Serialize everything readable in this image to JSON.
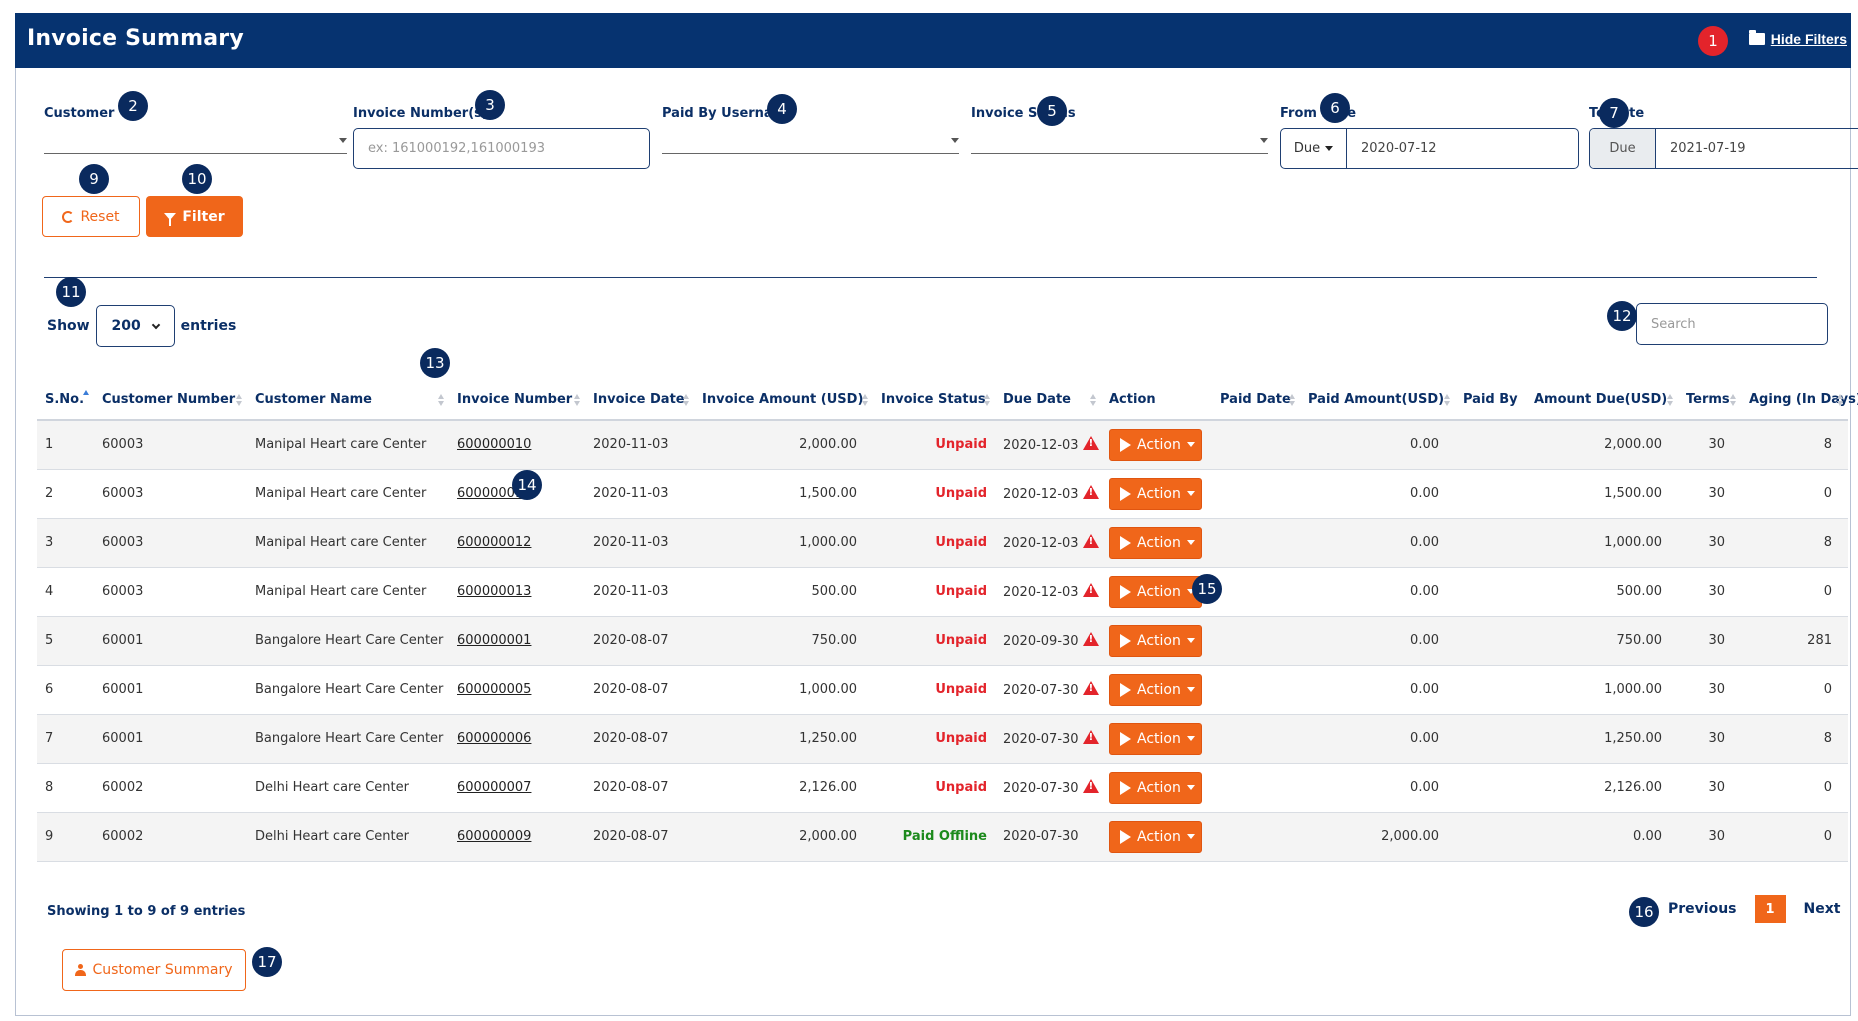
{
  "header": {
    "title": "Invoice Summary",
    "hide_filters_label": "Hide Filters"
  },
  "filters": {
    "customer_label": "Customer",
    "invoice_numbers_label": "Invoice Number(s)",
    "invoice_numbers_placeholder": "ex: 161000192,161000193",
    "paid_by_label": "Paid By Username",
    "status_label": "Invoice Status",
    "from_date_label": "From Date",
    "from_date_type": "Due",
    "from_date_value": "2020-07-12",
    "to_date_label": "To Date",
    "to_date_type": "Due",
    "to_date_value": "2021-07-19",
    "reset_label": "Reset",
    "filter_label": "Filter"
  },
  "table_controls": {
    "show_label": "Show",
    "entries_count": "200",
    "entries_label": "entries",
    "search_placeholder": "Search"
  },
  "table": {
    "headers": [
      "S.No.",
      "Customer Number",
      "Customer Name",
      "Invoice Number",
      "Invoice Date",
      "Invoice Amount (USD)",
      "Invoice Status",
      "Due Date",
      "Action",
      "Paid Date",
      "Paid Amount(USD)",
      "Paid By",
      "Amount Due(USD)",
      "Terms",
      "Aging (In Days)"
    ],
    "action_label": "Action",
    "rows": [
      {
        "sno": "1",
        "cust_no": "60003",
        "cust_name": "Manipal Heart care Center",
        "inv_no": "600000010",
        "inv_date": "2020-11-03",
        "amount": "2,000.00",
        "status": "Unpaid",
        "due": "2020-12-03",
        "overdue": true,
        "paid_date": "",
        "paid_amount": "0.00",
        "paid_by": "",
        "amount_due": "2,000.00",
        "terms": "30",
        "aging": "8"
      },
      {
        "sno": "2",
        "cust_no": "60003",
        "cust_name": "Manipal Heart care Center",
        "inv_no": "600000011",
        "inv_date": "2020-11-03",
        "amount": "1,500.00",
        "status": "Unpaid",
        "due": "2020-12-03",
        "overdue": true,
        "paid_date": "",
        "paid_amount": "0.00",
        "paid_by": "",
        "amount_due": "1,500.00",
        "terms": "30",
        "aging": "0"
      },
      {
        "sno": "3",
        "cust_no": "60003",
        "cust_name": "Manipal Heart care Center",
        "inv_no": "600000012",
        "inv_date": "2020-11-03",
        "amount": "1,000.00",
        "status": "Unpaid",
        "due": "2020-12-03",
        "overdue": true,
        "paid_date": "",
        "paid_amount": "0.00",
        "paid_by": "",
        "amount_due": "1,000.00",
        "terms": "30",
        "aging": "8"
      },
      {
        "sno": "4",
        "cust_no": "60003",
        "cust_name": "Manipal Heart care Center",
        "inv_no": "600000013",
        "inv_date": "2020-11-03",
        "amount": "500.00",
        "status": "Unpaid",
        "due": "2020-12-03",
        "overdue": true,
        "paid_date": "",
        "paid_amount": "0.00",
        "paid_by": "",
        "amount_due": "500.00",
        "terms": "30",
        "aging": "0"
      },
      {
        "sno": "5",
        "cust_no": "60001",
        "cust_name": "Bangalore Heart Care Center",
        "inv_no": "600000001",
        "inv_date": "2020-08-07",
        "amount": "750.00",
        "status": "Unpaid",
        "due": "2020-09-30",
        "overdue": true,
        "paid_date": "",
        "paid_amount": "0.00",
        "paid_by": "",
        "amount_due": "750.00",
        "terms": "30",
        "aging": "281"
      },
      {
        "sno": "6",
        "cust_no": "60001",
        "cust_name": "Bangalore Heart Care Center",
        "inv_no": "600000005",
        "inv_date": "2020-08-07",
        "amount": "1,000.00",
        "status": "Unpaid",
        "due": "2020-07-30",
        "overdue": true,
        "paid_date": "",
        "paid_amount": "0.00",
        "paid_by": "",
        "amount_due": "1,000.00",
        "terms": "30",
        "aging": "0"
      },
      {
        "sno": "7",
        "cust_no": "60001",
        "cust_name": "Bangalore Heart Care Center",
        "inv_no": "600000006",
        "inv_date": "2020-08-07",
        "amount": "1,250.00",
        "status": "Unpaid",
        "due": "2020-07-30",
        "overdue": true,
        "paid_date": "",
        "paid_amount": "0.00",
        "paid_by": "",
        "amount_due": "1,250.00",
        "terms": "30",
        "aging": "8"
      },
      {
        "sno": "8",
        "cust_no": "60002",
        "cust_name": "Delhi Heart care Center",
        "inv_no": "600000007",
        "inv_date": "2020-08-07",
        "amount": "2,126.00",
        "status": "Unpaid",
        "due": "2020-07-30",
        "overdue": true,
        "paid_date": "",
        "paid_amount": "0.00",
        "paid_by": "",
        "amount_due": "2,126.00",
        "terms": "30",
        "aging": "0"
      },
      {
        "sno": "9",
        "cust_no": "60002",
        "cust_name": "Delhi Heart care Center",
        "inv_no": "600000009",
        "inv_date": "2020-08-07",
        "amount": "2,000.00",
        "status": "Paid Offline",
        "due": "2020-07-30",
        "overdue": false,
        "paid_date": "",
        "paid_amount": "2,000.00",
        "paid_by": "",
        "amount_due": "0.00",
        "terms": "30",
        "aging": "0"
      }
    ]
  },
  "footer": {
    "showing_text": "Showing 1 to 9 of 9 entries",
    "previous_label": "Previous",
    "current_page": "1",
    "next_label": "Next",
    "customer_summary_label": "Customer Summary"
  },
  "callouts": [
    "1",
    "2",
    "3",
    "4",
    "5",
    "6",
    "7",
    "9",
    "10",
    "11",
    "12",
    "13",
    "14",
    "15",
    "16",
    "17"
  ],
  "colors": {
    "header_bg": "#063370",
    "accent_orange": "#f0661a",
    "unpaid_red": "#e3242b",
    "paid_green": "#1c8a1c",
    "label_navy": "#0b2f66"
  }
}
